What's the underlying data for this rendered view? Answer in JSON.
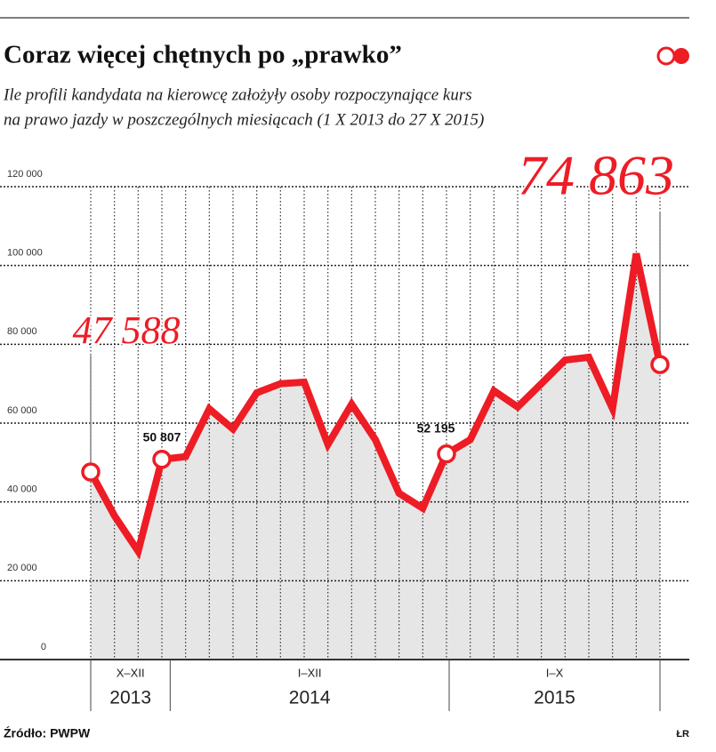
{
  "header": {
    "title": "Coraz więcej chętnych po „prawko”",
    "subtitle_lines": [
      "Ile profili kandydata na kierowcę założyły osoby rozpoczynające kurs",
      "na prawo jazdy w poszczególnych miesiącach (1 X 2013 do 27 X 2015)"
    ]
  },
  "chart_data": {
    "type": "line",
    "series": [
      {
        "color": "#ee1c25",
        "values": [
          47588,
          36500,
          27500,
          50807,
          51500,
          63600,
          58500,
          67700,
          70000,
          70400,
          54600,
          64800,
          55800,
          42200,
          38400,
          52195,
          55800,
          68200,
          64100,
          70000,
          76000,
          76700,
          63700,
          103000,
          74863
        ],
        "value_labels": [
          "47 588",
          null,
          null,
          "50 807",
          null,
          null,
          null,
          null,
          null,
          null,
          null,
          null,
          null,
          null,
          null,
          "52 195",
          null,
          null,
          null,
          null,
          null,
          null,
          null,
          null,
          "74 863"
        ]
      }
    ],
    "periods": [
      {
        "label": "X–XII",
        "year": "2013"
      },
      {
        "label": "I–XII",
        "year": "2014"
      },
      {
        "label": "I–X",
        "year": "2015"
      }
    ],
    "ylim": [
      0,
      120000
    ],
    "yticks": [
      0,
      {
        "value": 20000,
        "label": "20 000"
      },
      {
        "value": 40000,
        "label": "40 000"
      },
      {
        "value": 60000,
        "label": "60 000"
      },
      {
        "value": 80000,
        "label": "80 000"
      },
      {
        "value": 100000,
        "label": "100 000"
      },
      {
        "value": 120000,
        "label": "120 000"
      }
    ],
    "grid": true
  },
  "footer": {
    "source": "Źródło: PWPW",
    "author": "ŁR"
  }
}
